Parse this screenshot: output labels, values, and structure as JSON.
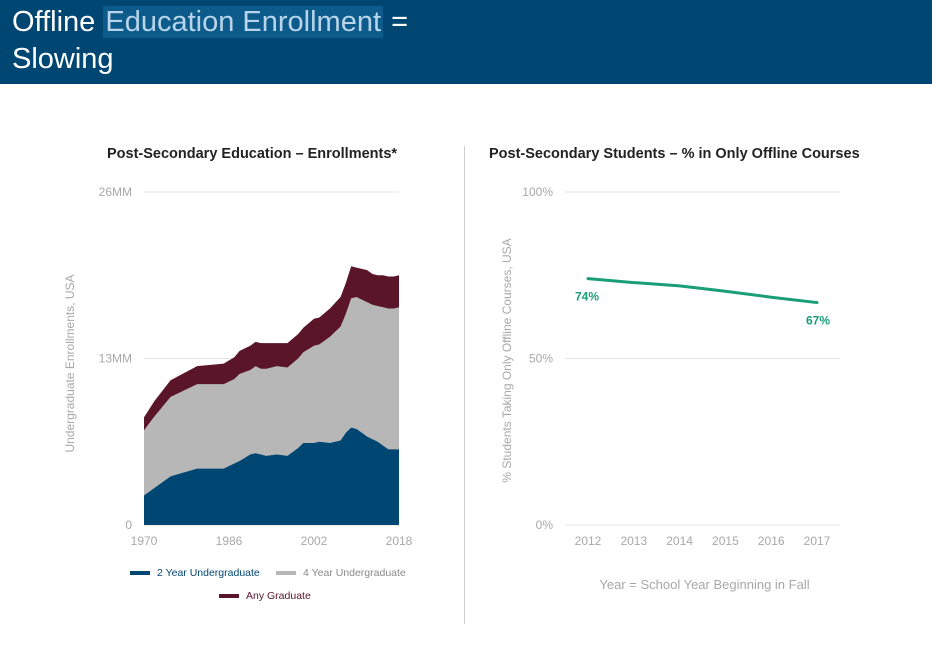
{
  "header": {
    "title_part1": "Offline",
    "title_highlight": "Education Enrollment",
    "title_part2": "=",
    "title_line2": "Slowing"
  },
  "colors": {
    "header_bg": "#004673",
    "two_year": "#004673",
    "four_year": "#b7b7b7",
    "graduate": "#5a1529",
    "line": "#1a9e78"
  },
  "chart_data": [
    {
      "type": "area",
      "stacked": true,
      "title": "Post-Secondary Education – Enrollments*",
      "xlabel": "",
      "ylabel": "Undergraduate Enrollments, USA",
      "x_ticks": [
        "1970",
        "1986",
        "2002",
        "2018"
      ],
      "y_ticks": [
        "0",
        "13MM",
        "26MM"
      ],
      "ylim": [
        0,
        26
      ],
      "xlim": [
        1970,
        2018
      ],
      "grid": true,
      "legend": "bottom",
      "x": [
        1970,
        1972,
        1975,
        1980,
        1985,
        1987,
        1988,
        1990,
        1991,
        1992,
        1993,
        1995,
        1997,
        1999,
        2000,
        2002,
        2003,
        2005,
        2007,
        2008,
        2009,
        2010,
        2011,
        2012,
        2013,
        2014,
        2015,
        2016,
        2017,
        2018
      ],
      "series": [
        {
          "name": "2 Year Undergraduate",
          "values": [
            2.3,
            2.9,
            3.8,
            4.4,
            4.4,
            4.8,
            5.0,
            5.5,
            5.6,
            5.5,
            5.4,
            5.5,
            5.4,
            6.0,
            6.4,
            6.4,
            6.5,
            6.4,
            6.6,
            7.2,
            7.6,
            7.5,
            7.2,
            6.9,
            6.7,
            6.5,
            6.2,
            5.9,
            5.9,
            5.9
          ]
        },
        {
          "name": "4 Year Undergraduate",
          "values": [
            5.1,
            5.6,
            6.2,
            6.6,
            6.6,
            6.6,
            6.8,
            6.6,
            6.8,
            6.7,
            6.8,
            6.9,
            6.9,
            7.0,
            7.1,
            7.6,
            7.6,
            8.3,
            8.9,
            9.3,
            10.1,
            10.3,
            10.4,
            10.5,
            10.5,
            10.6,
            10.8,
            11.0,
            11.0,
            11.1
          ]
        },
        {
          "name": "Any Graduate",
          "values": [
            1.0,
            1.2,
            1.3,
            1.4,
            1.6,
            1.7,
            1.8,
            1.9,
            1.9,
            2.0,
            2.0,
            1.8,
            1.9,
            1.9,
            1.9,
            2.1,
            2.1,
            2.2,
            2.3,
            2.4,
            2.5,
            2.3,
            2.4,
            2.5,
            2.4,
            2.4,
            2.5,
            2.5,
            2.5,
            2.5
          ]
        }
      ]
    },
    {
      "type": "line",
      "title": "Post-Secondary Students – % in Only Offline Courses",
      "xlabel": "Year = School Year Beginning in Fall",
      "ylabel": "% Students Taking Only Offline Courses, USA",
      "x_ticks": [
        "2012",
        "2013",
        "2014",
        "2015",
        "2016",
        "2017"
      ],
      "y_ticks": [
        "0%",
        "50%",
        "100%"
      ],
      "ylim": [
        0,
        100
      ],
      "grid": true,
      "categories": [
        "2012",
        "2013",
        "2014",
        "2015",
        "2016",
        "2017"
      ],
      "values": [
        74,
        72.8,
        71.8,
        70.2,
        68.4,
        66.8
      ],
      "data_labels": [
        {
          "index": 0,
          "text": "74%"
        },
        {
          "index": 5,
          "text": "67%"
        }
      ]
    }
  ]
}
